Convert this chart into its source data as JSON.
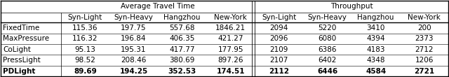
{
  "title_att": "Average Travel Time",
  "title_thr": "Throughput",
  "col_headers": [
    "Syn-Light",
    "Syn-Heavy",
    "Hangzhou",
    "New-York"
  ],
  "row_labels": [
    "FixedTime",
    "MaxPressure",
    "CoLight",
    "PressLight",
    "PDLight"
  ],
  "att_data": [
    [
      "115.36",
      "197.75",
      "557.68",
      "1846.21"
    ],
    [
      "116.32",
      "196.84",
      "406.35",
      "421.27"
    ],
    [
      "95.13",
      "195.31",
      "417.77",
      "177.95"
    ],
    [
      "98.52",
      "208.46",
      "380.69",
      "897.26"
    ],
    [
      "89.69",
      "194.25",
      "352.53",
      "174.51"
    ]
  ],
  "thr_data": [
    [
      "2094",
      "5220",
      "3410",
      "200"
    ],
    [
      "2096",
      "6080",
      "4394",
      "2373"
    ],
    [
      "2109",
      "6386",
      "4183",
      "2712"
    ],
    [
      "2107",
      "6402",
      "4348",
      "1206"
    ],
    [
      "2112",
      "6446",
      "4584",
      "2721"
    ]
  ],
  "bold_row": 4,
  "font_size": 7.5
}
